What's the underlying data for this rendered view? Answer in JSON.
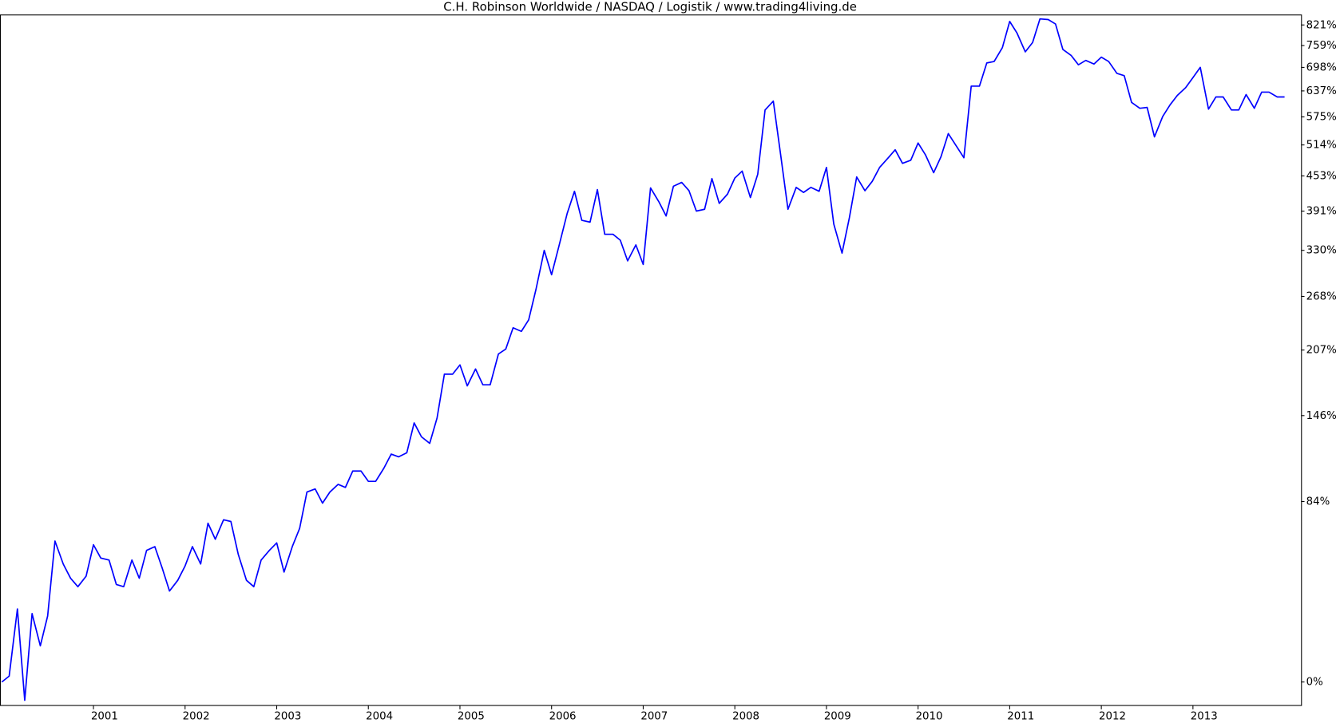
{
  "chart_data": {
    "type": "line",
    "title": "C.H. Robinson Worldwide / NASDAQ / Logistik / www.trading4living.de",
    "yscale": "log1p",
    "xlim": [
      1999.98,
      2014.18
    ],
    "ylim": [
      -7.5,
      854
    ],
    "xticks": [
      2001,
      2002,
      2003,
      2004,
      2005,
      2006,
      2007,
      2008,
      2009,
      2010,
      2011,
      2012,
      2013
    ],
    "yticks": [
      {
        "value": 0,
        "label": "0%"
      },
      {
        "value": 84,
        "label": "84%"
      },
      {
        "value": 146,
        "label": "146%"
      },
      {
        "value": 207,
        "label": "207%"
      },
      {
        "value": 268,
        "label": "268%"
      },
      {
        "value": 330,
        "label": "330%"
      },
      {
        "value": 391,
        "label": "391%"
      },
      {
        "value": 453,
        "label": "453%"
      },
      {
        "value": 514,
        "label": "514%"
      },
      {
        "value": 575,
        "label": "575%"
      },
      {
        "value": 637,
        "label": "637%"
      },
      {
        "value": 698,
        "label": "698%"
      },
      {
        "value": 759,
        "label": "759%"
      },
      {
        "value": 821,
        "label": "821%"
      }
    ],
    "x": [
      2000,
      2000.08,
      2000.17,
      2000.25,
      2000.33,
      2000.42,
      2000.5,
      2000.58,
      2000.67,
      2000.75,
      2000.83,
      2000.92,
      2001,
      2001.08,
      2001.17,
      2001.25,
      2001.33,
      2001.42,
      2001.5,
      2001.58,
      2001.67,
      2001.75,
      2001.83,
      2001.92,
      2002,
      2002.08,
      2002.17,
      2002.25,
      2002.33,
      2002.42,
      2002.5,
      2002.58,
      2002.67,
      2002.75,
      2002.83,
      2002.92,
      2003,
      2003.08,
      2003.17,
      2003.25,
      2003.33,
      2003.42,
      2003.5,
      2003.58,
      2003.67,
      2003.75,
      2003.83,
      2003.92,
      2004,
      2004.08,
      2004.17,
      2004.25,
      2004.33,
      2004.42,
      2004.5,
      2004.58,
      2004.67,
      2004.75,
      2004.83,
      2004.92,
      2005,
      2005.08,
      2005.17,
      2005.25,
      2005.33,
      2005.42,
      2005.5,
      2005.58,
      2005.67,
      2005.75,
      2005.83,
      2005.92,
      2006,
      2006.08,
      2006.17,
      2006.25,
      2006.33,
      2006.42,
      2006.5,
      2006.58,
      2006.67,
      2006.75,
      2006.83,
      2006.92,
      2007,
      2007.08,
      2007.17,
      2007.25,
      2007.33,
      2007.42,
      2007.5,
      2007.58,
      2007.67,
      2007.75,
      2007.83,
      2007.92,
      2008,
      2008.08,
      2008.17,
      2008.25,
      2008.33,
      2008.42,
      2008.5,
      2008.58,
      2008.67,
      2008.75,
      2008.83,
      2008.92,
      2009,
      2009.08,
      2009.17,
      2009.25,
      2009.33,
      2009.42,
      2009.5,
      2009.58,
      2009.67,
      2009.75,
      2009.83,
      2009.92,
      2010,
      2010.08,
      2010.17,
      2010.25,
      2010.33,
      2010.42,
      2010.5,
      2010.58,
      2010.67,
      2010.75,
      2010.83,
      2010.92,
      2011,
      2011.08,
      2011.17,
      2011.25,
      2011.33,
      2011.42,
      2011.5,
      2011.58,
      2011.67,
      2011.75,
      2011.83,
      2011.92,
      2012,
      2012.08,
      2012.17,
      2012.25,
      2012.33,
      2012.42,
      2012.5,
      2012.58,
      2012.67,
      2012.75,
      2012.83,
      2012.92,
      2013,
      2013.08,
      2013.17,
      2013.25,
      2013.33,
      2013.42,
      2013.5,
      2013.58,
      2013.67,
      2013.75,
      2013.83,
      2013.92,
      2014
    ],
    "series": [
      {
        "color": "#0000ff",
        "values": [
          0,
          2,
          28,
          -6,
          26,
          13,
          25,
          61,
          49,
          42,
          38,
          43,
          59,
          52,
          51,
          39,
          38,
          51,
          42,
          56,
          58,
          47,
          36,
          41,
          48,
          58,
          49,
          71,
          62,
          73,
          72,
          54,
          41,
          38,
          51,
          56,
          60,
          45,
          58,
          68,
          90,
          92,
          83,
          90,
          95,
          93,
          104,
          104,
          97,
          97,
          106,
          116,
          114,
          117,
          140,
          129,
          124,
          144,
          183,
          183,
          192,
          172,
          188,
          173,
          173,
          203,
          208,
          231,
          227,
          240,
          277,
          330,
          296,
          336,
          387,
          425,
          376,
          373,
          428,
          354,
          354,
          345,
          315,
          338,
          310,
          431,
          407,
          383,
          434,
          441,
          426,
          391,
          394,
          448,
          404,
          420,
          449,
          462,
          414,
          456,
          591,
          612,
          494,
          394,
          432,
          423,
          432,
          425,
          469,
          370,
          326,
          380,
          451,
          426,
          443,
          469,
          487,
          504,
          477,
          483,
          518,
          494,
          459,
          490,
          538,
          511,
          488,
          649,
          649,
          710,
          714,
          753,
          832,
          796,
          741,
          768,
          840,
          838,
          824,
          748,
          731,
          705,
          717,
          707,
          726,
          714,
          682,
          676,
          609,
          595,
          597,
          531,
          576,
          603,
          626,
          645,
          671,
          698,
          593,
          622,
          622,
          591,
          591,
          628,
          595,
          634,
          634,
          622,
          622
        ]
      }
    ]
  }
}
